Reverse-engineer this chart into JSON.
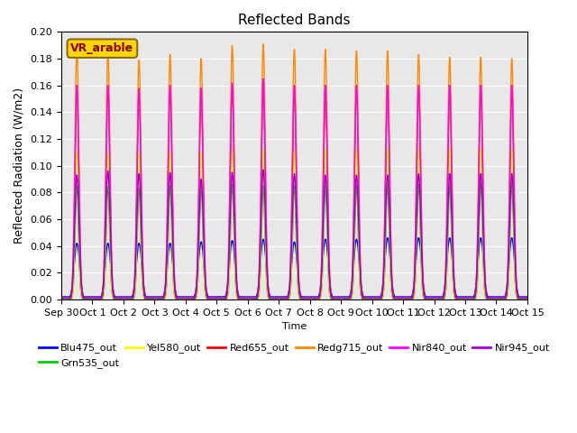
{
  "title": "Reflected Bands",
  "ylabel": "Reflected Radiation (W/m2)",
  "xlabel": "Time",
  "background_color": "#e8e8e8",
  "ylim": [
    0,
    0.2
  ],
  "yticks": [
    0.0,
    0.02,
    0.04,
    0.06,
    0.08,
    0.1,
    0.12,
    0.14,
    0.16,
    0.18,
    0.2
  ],
  "xtick_labels": [
    "Sep 30",
    "Oct 1",
    "Oct 2",
    "Oct 3",
    "Oct 4",
    "Oct 5",
    "Oct 6",
    "Oct 7",
    "Oct 8",
    "Oct 9",
    "Oct 10",
    "Oct 11",
    "Oct 12",
    "Oct 13",
    "Oct 14",
    "Oct 15"
  ],
  "annotation_text": "VR_arable",
  "annotation_color": "#8B0000",
  "annotation_bg": "#FFD700",
  "annotation_edge": "#8B6914",
  "series": [
    {
      "name": "Blu475_out",
      "color": "#0000FF",
      "base": 0.002,
      "sigma": 0.09,
      "peaks": [
        0.042,
        0.042,
        0.042,
        0.042,
        0.043,
        0.044,
        0.045,
        0.043,
        0.045,
        0.045,
        0.046,
        0.046,
        0.046,
        0.046,
        0.046
      ]
    },
    {
      "name": "Grn535_out",
      "color": "#00CC00",
      "base": 0.0,
      "sigma": 0.055,
      "peaks": [
        0.085,
        0.084,
        0.083,
        0.085,
        0.086,
        0.086,
        0.085,
        0.085,
        0.086,
        0.085,
        0.086,
        0.086,
        0.086,
        0.087,
        0.087
      ]
    },
    {
      "name": "Yel580_out",
      "color": "#FFFF00",
      "base": 0.001,
      "sigma": 0.055,
      "peaks": [
        0.11,
        0.11,
        0.11,
        0.11,
        0.11,
        0.112,
        0.112,
        0.112,
        0.112,
        0.113,
        0.113,
        0.113,
        0.113,
        0.113,
        0.113
      ]
    },
    {
      "name": "Red655_out",
      "color": "#FF0000",
      "base": 0.001,
      "sigma": 0.06,
      "peaks": [
        0.16,
        0.16,
        0.158,
        0.16,
        0.158,
        0.16,
        0.162,
        0.16,
        0.16,
        0.16,
        0.16,
        0.16,
        0.16,
        0.16,
        0.159
      ]
    },
    {
      "name": "Redg715_out",
      "color": "#FF8800",
      "base": 0.001,
      "sigma": 0.065,
      "peaks": [
        0.188,
        0.184,
        0.179,
        0.183,
        0.18,
        0.19,
        0.191,
        0.187,
        0.187,
        0.186,
        0.186,
        0.183,
        0.181,
        0.181,
        0.18
      ]
    },
    {
      "name": "Nir840_out",
      "color": "#FF00FF",
      "base": 0.001,
      "sigma": 0.065,
      "peaks": [
        0.16,
        0.16,
        0.157,
        0.16,
        0.158,
        0.162,
        0.165,
        0.16,
        0.16,
        0.16,
        0.16,
        0.16,
        0.16,
        0.16,
        0.16
      ]
    },
    {
      "name": "Nir945_out",
      "color": "#9900CC",
      "base": 0.001,
      "sigma": 0.07,
      "peaks": [
        0.093,
        0.096,
        0.094,
        0.095,
        0.09,
        0.095,
        0.097,
        0.094,
        0.093,
        0.093,
        0.093,
        0.094,
        0.094,
        0.094,
        0.094
      ]
    }
  ],
  "n_cycles": 15,
  "points_per_cycle": 200
}
